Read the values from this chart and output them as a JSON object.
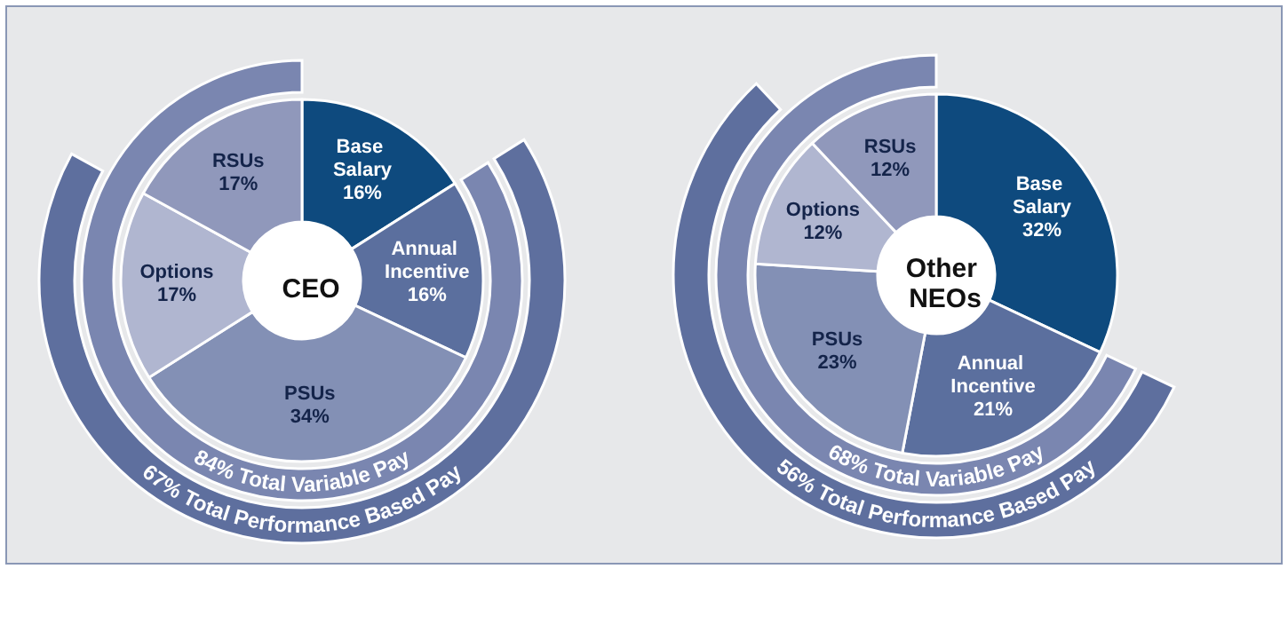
{
  "chart_data": [
    {
      "type": "donut",
      "title": "CEO",
      "categories": [
        "Base Salary",
        "Annual Incentive",
        "PSUs",
        "Options",
        "RSUs"
      ],
      "values": [
        16,
        16,
        34,
        17,
        17
      ],
      "value_labels": [
        "16%",
        "16%",
        "34%",
        "17%",
        "17%"
      ],
      "colors": [
        "#0e4a7e",
        "#5b6f9e",
        "#8390b5",
        "#b0b6d0",
        "#9098bb"
      ],
      "annotations": [
        "84% Total Variable Pay",
        "67% Total Performance Based Pay"
      ]
    },
    {
      "type": "donut",
      "title": "Other NEOs",
      "categories": [
        "Base Salary",
        "Annual Incentive",
        "PSUs",
        "Options",
        "RSUs"
      ],
      "values": [
        32,
        21,
        23,
        12,
        12
      ],
      "value_labels": [
        "32%",
        "21%",
        "23%",
        "12%",
        "12%"
      ],
      "colors": [
        "#0e4a7e",
        "#5b6f9e",
        "#8390b5",
        "#b0b6d0",
        "#9098bb"
      ],
      "annotations": [
        "68% Total Variable Pay",
        "56% Total Performance Based Pay"
      ]
    }
  ]
}
